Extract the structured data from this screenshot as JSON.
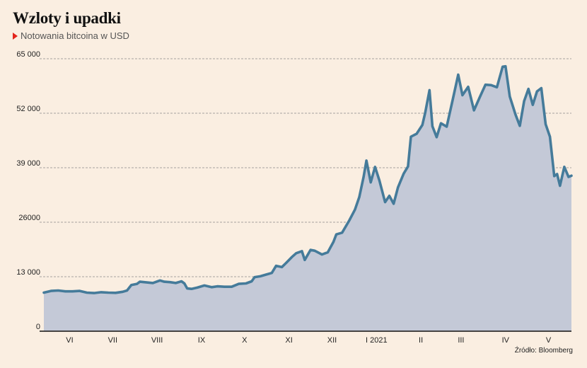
{
  "header": {
    "title": "Wzloty i upadki",
    "subtitle": "Notowania bitcoina w USD"
  },
  "source": "Źródło: Bloomberg",
  "colors": {
    "background": "#faeee1",
    "line": "#457b9a",
    "area": "#c4c9d7",
    "marker": "#e3241b",
    "grid": "#8a8a8a"
  },
  "chart_data": {
    "type": "area",
    "title": "Wzloty i upadki",
    "subtitle": "Notowania bitcoina w USD",
    "xlabel": "",
    "ylabel": "",
    "ylim": [
      0,
      65000
    ],
    "xlim": [
      "2020-05-28",
      "2021-05-31"
    ],
    "y_ticks": [
      {
        "value": 0,
        "label": "0"
      },
      {
        "value": 13000,
        "label": "13 000"
      },
      {
        "value": 26000,
        "label": "26000"
      },
      {
        "value": 39000,
        "label": "39 000"
      },
      {
        "value": 52000,
        "label": "52 000"
      },
      {
        "value": 65000,
        "label": "65 000"
      }
    ],
    "x_ticks": [
      {
        "date": "2020-06-15",
        "label": "VI"
      },
      {
        "date": "2020-07-15",
        "label": "VII"
      },
      {
        "date": "2020-08-15",
        "label": "VIII"
      },
      {
        "date": "2020-09-15",
        "label": "IX"
      },
      {
        "date": "2020-10-15",
        "label": "X"
      },
      {
        "date": "2020-11-15",
        "label": "XI"
      },
      {
        "date": "2020-12-15",
        "label": "XII"
      },
      {
        "date": "2021-01-15",
        "label": "I 2021"
      },
      {
        "date": "2021-02-15",
        "label": "II"
      },
      {
        "date": "2021-03-15",
        "label": "III"
      },
      {
        "date": "2021-04-15",
        "label": "IV"
      },
      {
        "date": "2021-05-15",
        "label": "V"
      }
    ],
    "grid": "horizontal dashed",
    "series": [
      {
        "points": [
          [
            "2020-05-28",
            9200
          ],
          [
            "2020-06-02",
            9600
          ],
          [
            "2020-06-07",
            9700
          ],
          [
            "2020-06-12",
            9500
          ],
          [
            "2020-06-17",
            9500
          ],
          [
            "2020-06-22",
            9600
          ],
          [
            "2020-06-27",
            9200
          ],
          [
            "2020-07-02",
            9100
          ],
          [
            "2020-07-07",
            9300
          ],
          [
            "2020-07-12",
            9200
          ],
          [
            "2020-07-17",
            9150
          ],
          [
            "2020-07-22",
            9400
          ],
          [
            "2020-07-25",
            9700
          ],
          [
            "2020-07-28",
            11000
          ],
          [
            "2020-08-01",
            11300
          ],
          [
            "2020-08-03",
            11800
          ],
          [
            "2020-08-06",
            11700
          ],
          [
            "2020-08-09",
            11600
          ],
          [
            "2020-08-12",
            11500
          ],
          [
            "2020-08-17",
            12100
          ],
          [
            "2020-08-20",
            11800
          ],
          [
            "2020-08-24",
            11700
          ],
          [
            "2020-08-28",
            11500
          ],
          [
            "2020-09-01",
            11900
          ],
          [
            "2020-09-03",
            11400
          ],
          [
            "2020-09-05",
            10200
          ],
          [
            "2020-09-08",
            10100
          ],
          [
            "2020-09-12",
            10400
          ],
          [
            "2020-09-17",
            10900
          ],
          [
            "2020-09-22",
            10500
          ],
          [
            "2020-09-26",
            10700
          ],
          [
            "2020-10-01",
            10600
          ],
          [
            "2020-10-06",
            10600
          ],
          [
            "2020-10-11",
            11300
          ],
          [
            "2020-10-16",
            11400
          ],
          [
            "2020-10-20",
            11900
          ],
          [
            "2020-10-22",
            12900
          ],
          [
            "2020-10-26",
            13100
          ],
          [
            "2020-10-30",
            13500
          ],
          [
            "2020-11-03",
            13900
          ],
          [
            "2020-11-06",
            15600
          ],
          [
            "2020-11-10",
            15300
          ],
          [
            "2020-11-13",
            16300
          ],
          [
            "2020-11-17",
            17700
          ],
          [
            "2020-11-20",
            18600
          ],
          [
            "2020-11-24",
            19100
          ],
          [
            "2020-11-26",
            17000
          ],
          [
            "2020-11-30",
            19400
          ],
          [
            "2020-12-03",
            19200
          ],
          [
            "2020-12-08",
            18300
          ],
          [
            "2020-12-12",
            18800
          ],
          [
            "2020-12-16",
            21300
          ],
          [
            "2020-12-18",
            23100
          ],
          [
            "2020-12-22",
            23500
          ],
          [
            "2020-12-27",
            26400
          ],
          [
            "2020-12-31",
            29000
          ],
          [
            "2021-01-03",
            32000
          ],
          [
            "2021-01-06",
            36800
          ],
          [
            "2021-01-08",
            40700
          ],
          [
            "2021-01-11",
            35500
          ],
          [
            "2021-01-14",
            39200
          ],
          [
            "2021-01-17",
            36000
          ],
          [
            "2021-01-21",
            30800
          ],
          [
            "2021-01-24",
            32300
          ],
          [
            "2021-01-27",
            30400
          ],
          [
            "2021-01-30",
            34300
          ],
          [
            "2021-02-03",
            37600
          ],
          [
            "2021-02-06",
            39300
          ],
          [
            "2021-02-08",
            46400
          ],
          [
            "2021-02-12",
            47100
          ],
          [
            "2021-02-16",
            49200
          ],
          [
            "2021-02-18",
            52100
          ],
          [
            "2021-02-21",
            57500
          ],
          [
            "2021-02-23",
            48900
          ],
          [
            "2021-02-26",
            46300
          ],
          [
            "2021-03-01",
            49600
          ],
          [
            "2021-03-05",
            48800
          ],
          [
            "2021-03-09",
            54900
          ],
          [
            "2021-03-13",
            61200
          ],
          [
            "2021-03-16",
            56300
          ],
          [
            "2021-03-20",
            58300
          ],
          [
            "2021-03-24",
            52700
          ],
          [
            "2021-03-28",
            55800
          ],
          [
            "2021-04-01",
            58800
          ],
          [
            "2021-04-05",
            58700
          ],
          [
            "2021-04-09",
            58200
          ],
          [
            "2021-04-13",
            63100
          ],
          [
            "2021-04-15",
            63200
          ],
          [
            "2021-04-18",
            56000
          ],
          [
            "2021-04-22",
            51700
          ],
          [
            "2021-04-25",
            49000
          ],
          [
            "2021-04-28",
            54900
          ],
          [
            "2021-05-01",
            57800
          ],
          [
            "2021-05-04",
            54000
          ],
          [
            "2021-05-07",
            57200
          ],
          [
            "2021-05-10",
            58000
          ],
          [
            "2021-05-13",
            49400
          ],
          [
            "2021-05-16",
            46400
          ],
          [
            "2021-05-19",
            37000
          ],
          [
            "2021-05-21",
            37500
          ],
          [
            "2021-05-23",
            34700
          ],
          [
            "2021-05-26",
            39200
          ],
          [
            "2021-05-29",
            36800
          ],
          [
            "2021-05-31",
            37100
          ]
        ]
      }
    ]
  }
}
